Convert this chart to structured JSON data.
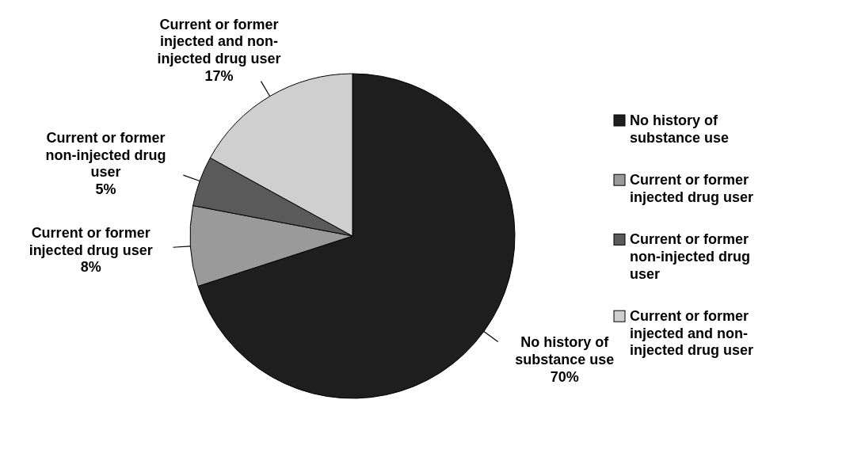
{
  "chart_data": {
    "type": "pie",
    "categories": [
      "No history of substance use",
      "Current or former injected drug user",
      "Current or former non-injected drug user",
      "Current or former injected and non-injected drug user"
    ],
    "values": [
      70,
      8,
      5,
      17
    ],
    "value_labels": [
      "70%",
      "8%",
      "5%",
      "17%"
    ],
    "colors": [
      "#1e1e1e",
      "#9a9a9a",
      "#5a5a5a",
      "#cfcfcf"
    ],
    "legend": "right"
  }
}
